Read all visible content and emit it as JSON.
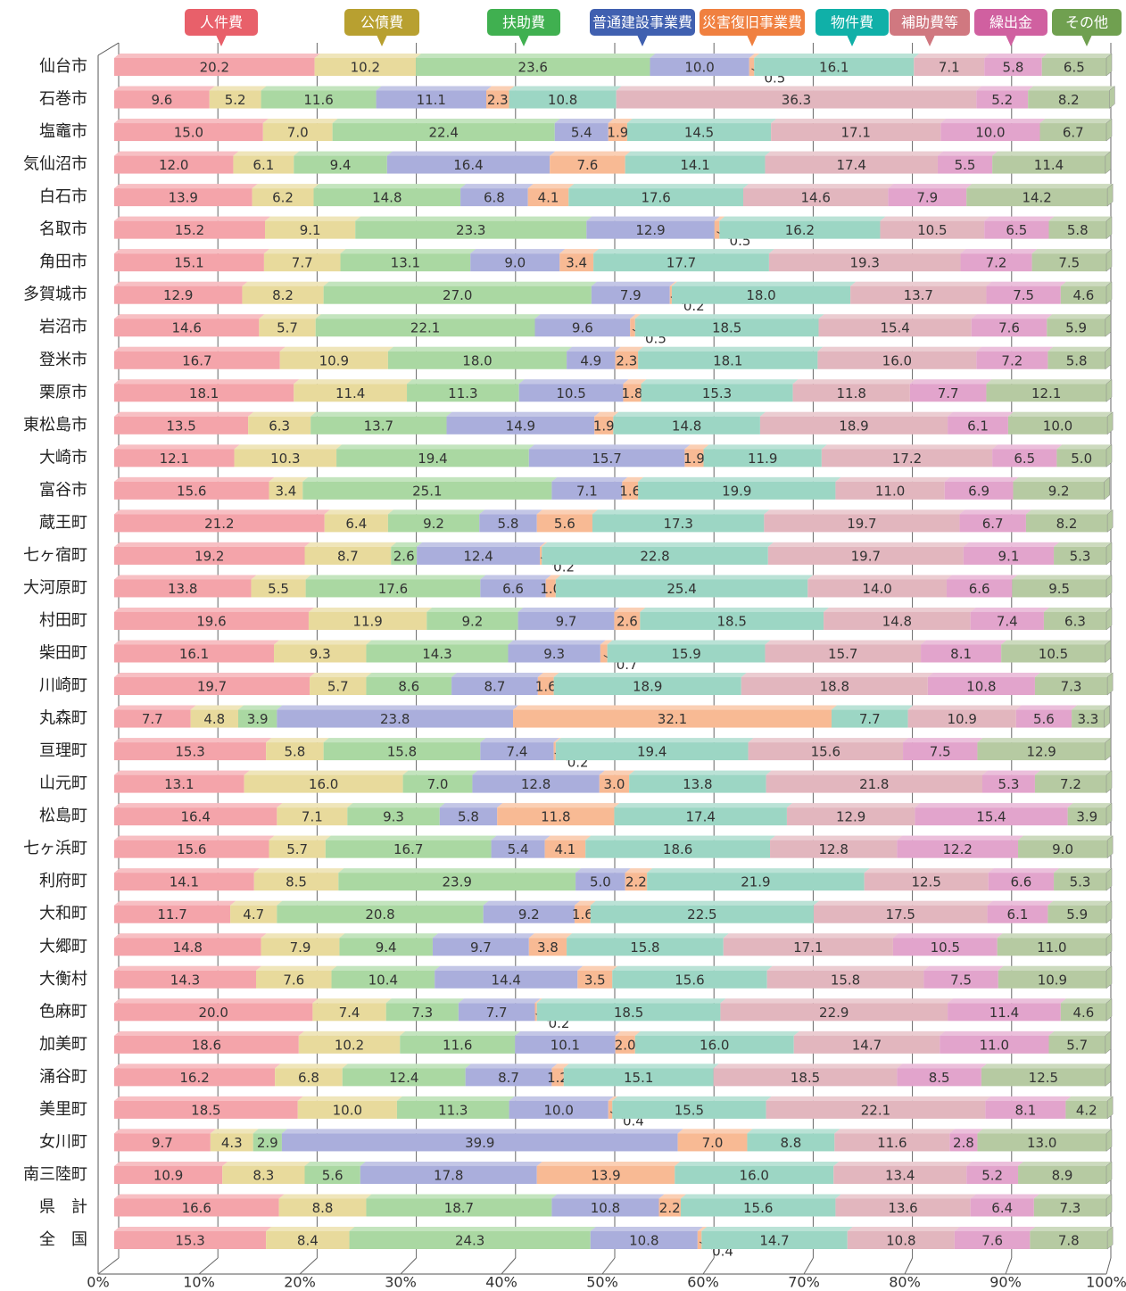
{
  "chart_data": {
    "type": "stacked_barh",
    "categories": [
      "仙台市",
      "石巻市",
      "塩竈市",
      "気仙沼市",
      "白石市",
      "名取市",
      "角田市",
      "多賀城市",
      "岩沼市",
      "登米市",
      "栗原市",
      "東松島市",
      "大崎市",
      "富谷市",
      "蔵王町",
      "七ヶ宿町",
      "大河原町",
      "村田町",
      "柴田町",
      "川崎町",
      "丸森町",
      "亘理町",
      "山元町",
      "松島町",
      "七ヶ浜町",
      "利府町",
      "大和町",
      "大郷町",
      "大衡村",
      "色麻町",
      "加美町",
      "涌谷町",
      "美里町",
      "女川町",
      "南三陸町",
      "県　計",
      "全　国"
    ],
    "xlim": [
      0,
      100
    ],
    "xticks": [
      {
        "value": 0,
        "label": "0%"
      },
      {
        "value": 10,
        "label": "10%"
      },
      {
        "value": 20,
        "label": "20%"
      },
      {
        "value": 30,
        "label": "30%"
      },
      {
        "value": 40,
        "label": "40%"
      },
      {
        "value": 50,
        "label": "50%"
      },
      {
        "value": 60,
        "label": "60%"
      },
      {
        "value": 70,
        "label": "70%"
      },
      {
        "value": 80,
        "label": "80%"
      },
      {
        "value": 90,
        "label": "90%"
      },
      {
        "value": 100,
        "label": "100%"
      }
    ],
    "grid": true,
    "series": [
      {
        "name": "人件費",
        "color": "#f4a4aa",
        "label_color": "#e8606a",
        "values": [
          20.2,
          9.6,
          15.0,
          12.0,
          13.9,
          15.2,
          15.1,
          12.9,
          14.6,
          16.7,
          18.1,
          13.5,
          12.1,
          15.6,
          21.2,
          19.2,
          13.8,
          19.6,
          16.1,
          19.7,
          7.7,
          15.3,
          13.1,
          16.4,
          15.6,
          14.1,
          11.7,
          14.8,
          14.3,
          20.0,
          18.6,
          16.2,
          18.5,
          9.7,
          10.9,
          16.6,
          15.3
        ],
        "value_labels": [
          "20.2",
          "9.6",
          "15.0",
          "12.0",
          "13.9",
          "15.2",
          "15.1",
          "12.9",
          "14.6",
          "16.7",
          "18.1",
          "13.5",
          "12.1",
          "15.6",
          "21.2",
          "19.2",
          "13.8",
          "19.6",
          "16.1",
          "19.7",
          "7.7",
          "15.3",
          "13.1",
          "16.4",
          "15.6",
          "14.1",
          "11.7",
          "14.8",
          "14.3",
          "20.0",
          "18.6",
          "16.2",
          "18.5",
          "9.7",
          "10.9",
          "16.6",
          "15.3"
        ]
      },
      {
        "name": "公債費",
        "color": "#e8da9c",
        "label_color": "#b8a030",
        "values": [
          10.2,
          5.2,
          7.0,
          6.1,
          6.2,
          9.1,
          7.7,
          8.2,
          5.7,
          10.9,
          11.4,
          6.3,
          10.3,
          3.4,
          6.4,
          8.7,
          5.5,
          11.9,
          9.3,
          5.7,
          4.8,
          5.8,
          16.0,
          7.1,
          5.7,
          8.5,
          4.7,
          7.9,
          7.6,
          7.4,
          10.2,
          6.8,
          10.0,
          4.3,
          8.3,
          8.8,
          8.4
        ],
        "value_labels": [
          "10.2",
          "5.2",
          "7.0",
          "6.1",
          "6.2",
          "9.1",
          "7.7",
          "8.2",
          "5.7",
          "10.9",
          "11.4",
          "6.3",
          "10.3",
          "3.4",
          "6.4",
          "8.7",
          "5.5",
          "11.9",
          "9.3",
          "5.7",
          "4.8",
          "5.8",
          "16.0",
          "7.1",
          "5.7",
          "8.5",
          "4.7",
          "7.9",
          "7.6",
          "7.4",
          "10.2",
          "6.8",
          "10.0",
          "4.3",
          "8.3",
          "8.8",
          "8.4"
        ]
      },
      {
        "name": "扶助費",
        "color": "#aad8a2",
        "label_color": "#40b050",
        "values": [
          23.6,
          11.6,
          22.4,
          9.4,
          14.8,
          23.3,
          13.1,
          27.0,
          22.1,
          18.0,
          11.3,
          13.7,
          19.4,
          25.1,
          9.2,
          2.6,
          17.6,
          9.2,
          14.3,
          8.6,
          3.9,
          15.8,
          7.0,
          9.3,
          16.7,
          23.9,
          20.8,
          9.4,
          10.4,
          7.3,
          11.6,
          12.4,
          11.3,
          2.9,
          5.6,
          18.7,
          24.3
        ],
        "value_labels": [
          "23.6",
          "11.6",
          "22.4",
          "9.4",
          "14.8",
          "23.3",
          "13.1",
          "27.0",
          "22.1",
          "18.0",
          "11.3",
          "13.7",
          "19.4",
          "25.1",
          "9.2",
          "2.6",
          "17.6",
          "9.2",
          "14.3",
          "8.6",
          "3.9",
          "15.8",
          "7.0",
          "9.3",
          "16.7",
          "23.9",
          "20.8",
          "9.4",
          "10.4",
          "7.3",
          "11.6",
          "12.4",
          "11.3",
          "2.9",
          "5.6",
          "18.7",
          "24.3"
        ]
      },
      {
        "name": "普通建設事業費",
        "color": "#aaaedc",
        "label_color": "#4060b0",
        "values": [
          10.0,
          11.1,
          5.4,
          16.4,
          6.8,
          12.9,
          9.0,
          7.9,
          9.6,
          4.9,
          10.5,
          14.9,
          15.7,
          7.1,
          5.8,
          12.4,
          6.6,
          9.7,
          9.3,
          8.7,
          23.8,
          7.4,
          12.8,
          5.8,
          5.4,
          5.0,
          9.2,
          9.7,
          14.4,
          7.7,
          10.1,
          8.7,
          10.0,
          39.9,
          17.8,
          10.8,
          10.8
        ],
        "value_labels": [
          "10.0",
          "11.1",
          "5.4",
          "16.4",
          "6.8",
          "12.9",
          "9.0",
          "7.9",
          "9.6",
          "4.9",
          "10.5",
          "14.9",
          "15.7",
          "7.1",
          "5.8",
          "12.4",
          "6.6",
          "9.7",
          "9.3",
          "8.7",
          "23.8",
          "7.4",
          "12.8",
          "5.8",
          "5.4",
          "5.0",
          "9.2",
          "9.7",
          "14.4",
          "7.7",
          "10.1",
          "8.7",
          "10.0",
          "39.9",
          "17.8",
          "10.8",
          "10.8"
        ]
      },
      {
        "name": "災害復旧事業費",
        "color": "#f8ba94",
        "label_color": "#f08040",
        "values": [
          0.5,
          2.3,
          1.9,
          7.6,
          4.1,
          0.5,
          3.4,
          0.2,
          0.5,
          2.3,
          1.8,
          1.9,
          1.9,
          1.6,
          5.6,
          0.2,
          1.0,
          2.6,
          0.7,
          1.6,
          32.1,
          0.2,
          3.0,
          11.8,
          4.1,
          2.2,
          1.6,
          3.8,
          3.5,
          0.2,
          2.0,
          1.2,
          0.4,
          7.0,
          13.9,
          2.2,
          0.4
        ],
        "value_labels": [
          "0.5",
          "2.3",
          "1.9",
          "7.6",
          "4.1",
          "0.5",
          "3.4",
          "0.2",
          "0.5",
          "2.3",
          "1.8",
          "1.9",
          "1.9",
          "1.6",
          "5.6",
          "0.2",
          "1.0",
          "2.6",
          "0.7",
          "1.6",
          "32.1",
          "0.2",
          "3.0",
          "11.8",
          "4.1",
          "2.2",
          "1.6",
          "3.8",
          "3.5",
          "0.2",
          "2.0",
          "1.2",
          "0.4",
          "7.0",
          "13.9",
          "2.2",
          "0.4"
        ]
      },
      {
        "name": "物件費",
        "color": "#9cd6c4",
        "label_color": "#10b0a8",
        "values": [
          16.1,
          10.8,
          14.5,
          14.1,
          17.6,
          16.2,
          17.7,
          18.0,
          18.5,
          18.1,
          15.3,
          14.8,
          11.9,
          19.9,
          17.3,
          22.8,
          25.4,
          18.5,
          15.9,
          18.9,
          7.7,
          19.4,
          13.8,
          17.4,
          18.6,
          21.9,
          22.5,
          15.8,
          15.6,
          18.5,
          16.0,
          15.1,
          15.5,
          8.8,
          16.0,
          15.6,
          14.7
        ],
        "value_labels": [
          "16.1",
          "10.8",
          "14.5",
          "14.1",
          "17.6",
          "16.2",
          "17.7",
          "18.0",
          "18.5",
          "18.1",
          "15.3",
          "14.8",
          "11.9",
          "19.9",
          "17.3",
          "22.8",
          "25.4",
          "18.5",
          "15.9",
          "18.9",
          "7.7",
          "19.4",
          "13.8",
          "17.4",
          "18.6",
          "21.9",
          "22.5",
          "15.8",
          "15.6",
          "18.5",
          "16.0",
          "15.1",
          "15.5",
          "8.8",
          "16.0",
          "15.6",
          "14.7"
        ]
      },
      {
        "name": "補助費等",
        "color": "#e2b6be",
        "label_color": "#d07880",
        "values": [
          7.1,
          36.3,
          17.1,
          17.4,
          14.6,
          10.5,
          19.3,
          13.7,
          15.4,
          16.0,
          11.8,
          18.9,
          17.2,
          11.0,
          19.7,
          19.7,
          14.0,
          14.8,
          15.7,
          18.8,
          10.9,
          15.6,
          21.8,
          12.9,
          12.8,
          12.5,
          17.5,
          17.1,
          15.8,
          22.9,
          14.7,
          18.5,
          22.1,
          11.6,
          13.4,
          13.6,
          10.8
        ],
        "value_labels": [
          "7.1",
          "36.3",
          "17.1",
          "17.4",
          "14.6",
          "10.5",
          "19.3",
          "13.7",
          "15.4",
          "16.0",
          "11.8",
          "18.9",
          "17.2",
          "11.0",
          "19.7",
          "19.7",
          "14.0",
          "14.8",
          "15.7",
          "18.8",
          "10.9",
          "15.6",
          "21.8",
          "12.9",
          "12.8",
          "12.5",
          "17.5",
          "17.1",
          "15.8",
          "22.9",
          "14.7",
          "18.5",
          "22.1",
          "11.6",
          "13.4",
          "13.6",
          "10.8"
        ]
      },
      {
        "name": "繰出金",
        "color": "#e2a4cc",
        "label_color": "#d060a0",
        "values": [
          5.8,
          5.2,
          10.0,
          5.5,
          7.9,
          6.5,
          7.2,
          7.5,
          7.6,
          7.2,
          7.7,
          6.1,
          6.5,
          6.9,
          6.7,
          9.1,
          6.6,
          7.4,
          8.1,
          10.8,
          5.6,
          7.5,
          5.3,
          15.4,
          12.2,
          6.6,
          6.1,
          10.5,
          7.5,
          11.4,
          11.0,
          8.5,
          8.1,
          2.8,
          5.2,
          6.4,
          7.6
        ],
        "value_labels": [
          "5.8",
          "5.2",
          "10.0",
          "5.5",
          "7.9",
          "6.5",
          "7.2",
          "7.5",
          "7.6",
          "7.2",
          "7.7",
          "6.1",
          "6.5",
          "6.9",
          "6.7",
          "9.1",
          "6.6",
          "7.4",
          "8.1",
          "10.8",
          "5.6",
          "7.5",
          "5.3",
          "15.4",
          "12.2",
          "6.6",
          "6.1",
          "10.5",
          "7.5",
          "11.4",
          "11.0",
          "8.5",
          "8.1",
          "2.8",
          "5.2",
          "6.4",
          "7.6"
        ]
      },
      {
        "name": "その他",
        "color": "#b6caa2",
        "label_color": "#70a050",
        "values": [
          6.5,
          8.2,
          6.7,
          11.4,
          14.2,
          5.8,
          7.5,
          4.6,
          5.9,
          5.8,
          12.1,
          10.0,
          5.0,
          9.2,
          8.2,
          5.3,
          9.5,
          6.3,
          10.5,
          7.3,
          3.3,
          12.9,
          7.2,
          3.9,
          9.0,
          5.3,
          5.9,
          11.0,
          10.9,
          4.6,
          5.7,
          12.5,
          4.2,
          13.0,
          8.9,
          7.3,
          7.8
        ],
        "value_labels": [
          "6.5",
          "8.2",
          "6.7",
          "11.4",
          "14.2",
          "5.8",
          "7.5",
          "4.6",
          "5.9",
          "5.8",
          "12.1",
          "10.0",
          "5.0",
          "9.2",
          "8.2",
          "5.3",
          "9.5",
          "6.3",
          "10.5",
          "7.3",
          "3.3",
          "12.9",
          "7.2",
          "3.9",
          "9.0",
          "5.3",
          "5.9",
          "11.0",
          "10.9",
          "4.6",
          "5.7",
          "12.5",
          "4.2",
          "13.0",
          "8.9",
          "7.3",
          "7.8"
        ]
      }
    ]
  }
}
